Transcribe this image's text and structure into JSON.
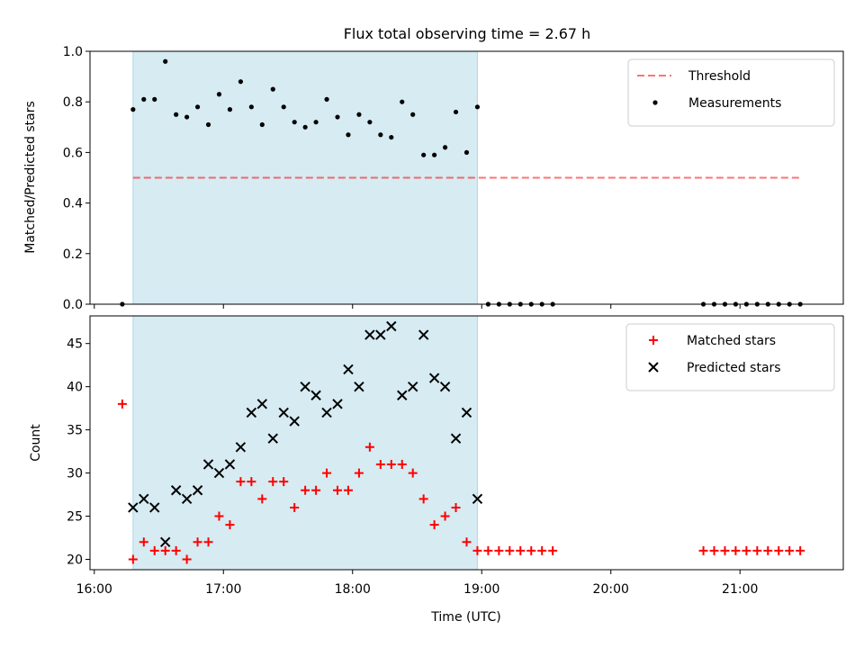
{
  "figure_title": "Flux total observing time = 2.67 h",
  "colors": {
    "shade": "#add8e6",
    "threshold": "#ff0000",
    "measurement": "#000000",
    "matched": "#ff0000",
    "predicted": "#000000"
  },
  "chart_data": [
    {
      "type": "scatter",
      "panel": "top",
      "title": "Flux total observing time = 2.67 h",
      "xlabel": "",
      "ylabel": "Matched/Predicted stars",
      "xlim": [
        "15:58",
        "21:48"
      ],
      "ylim": [
        0,
        1.0
      ],
      "xticks": [
        "16:00",
        "17:00",
        "18:00",
        "19:00",
        "20:00",
        "21:00"
      ],
      "yticks": [
        "0.0",
        "0.2",
        "0.4",
        "0.6",
        "0.8",
        "1.0"
      ],
      "shaded_interval": [
        "16:18",
        "18:58"
      ],
      "legend_position": "top-right",
      "threshold": {
        "name": "Threshold",
        "x": [
          "16:18",
          "21:28"
        ],
        "y": 0.5,
        "style": "dashed"
      },
      "series": [
        {
          "name": "Measurements",
          "marker": "dot",
          "points": [
            [
              "16:13",
              0.0
            ],
            [
              "16:18",
              0.77
            ],
            [
              "16:23",
              0.81
            ],
            [
              "16:28",
              0.81
            ],
            [
              "16:33",
              0.96
            ],
            [
              "16:38",
              0.75
            ],
            [
              "16:43",
              0.74
            ],
            [
              "16:48",
              0.78
            ],
            [
              "16:53",
              0.71
            ],
            [
              "16:58",
              0.83
            ],
            [
              "17:03",
              0.77
            ],
            [
              "17:08",
              0.88
            ],
            [
              "17:13",
              0.78
            ],
            [
              "17:18",
              0.71
            ],
            [
              "17:23",
              0.85
            ],
            [
              "17:28",
              0.78
            ],
            [
              "17:33",
              0.72
            ],
            [
              "17:38",
              0.7
            ],
            [
              "17:43",
              0.72
            ],
            [
              "17:48",
              0.81
            ],
            [
              "17:53",
              0.74
            ],
            [
              "17:58",
              0.67
            ],
            [
              "18:03",
              0.75
            ],
            [
              "18:08",
              0.72
            ],
            [
              "18:13",
              0.67
            ],
            [
              "18:18",
              0.66
            ],
            [
              "18:23",
              0.8
            ],
            [
              "18:28",
              0.75
            ],
            [
              "18:33",
              0.59
            ],
            [
              "18:38",
              0.59
            ],
            [
              "18:43",
              0.62
            ],
            [
              "18:48",
              0.76
            ],
            [
              "18:53",
              0.6
            ],
            [
              "18:58",
              0.78
            ],
            [
              "19:03",
              0.0
            ],
            [
              "19:08",
              0.0
            ],
            [
              "19:13",
              0.0
            ],
            [
              "19:18",
              0.0
            ],
            [
              "19:23",
              0.0
            ],
            [
              "19:28",
              0.0
            ],
            [
              "19:33",
              0.0
            ],
            [
              "20:43",
              0.0
            ],
            [
              "20:48",
              0.0
            ],
            [
              "20:53",
              0.0
            ],
            [
              "20:58",
              0.0
            ],
            [
              "21:03",
              0.0
            ],
            [
              "21:08",
              0.0
            ],
            [
              "21:13",
              0.0
            ],
            [
              "21:18",
              0.0
            ],
            [
              "21:23",
              0.0
            ],
            [
              "21:28",
              0.0
            ]
          ]
        }
      ]
    },
    {
      "type": "scatter",
      "panel": "bottom",
      "title": "",
      "xlabel": "Time (UTC)",
      "ylabel": "Count",
      "xlim": [
        "15:58",
        "21:48"
      ],
      "ylim": [
        18.8,
        48.2
      ],
      "xticks": [
        "16:00",
        "17:00",
        "18:00",
        "19:00",
        "20:00",
        "21:00"
      ],
      "yticks": [
        "20",
        "25",
        "30",
        "35",
        "40",
        "45"
      ],
      "shaded_interval": [
        "16:18",
        "18:58"
      ],
      "legend_position": "top-right",
      "series": [
        {
          "name": "Matched stars",
          "marker": "plus",
          "points": [
            [
              "16:13",
              38
            ],
            [
              "16:18",
              20
            ],
            [
              "16:23",
              22
            ],
            [
              "16:28",
              21
            ],
            [
              "16:33",
              21
            ],
            [
              "16:38",
              21
            ],
            [
              "16:43",
              20
            ],
            [
              "16:48",
              22
            ],
            [
              "16:53",
              22
            ],
            [
              "16:58",
              25
            ],
            [
              "17:03",
              24
            ],
            [
              "17:08",
              29
            ],
            [
              "17:13",
              29
            ],
            [
              "17:18",
              27
            ],
            [
              "17:23",
              29
            ],
            [
              "17:28",
              29
            ],
            [
              "17:33",
              26
            ],
            [
              "17:38",
              28
            ],
            [
              "17:43",
              28
            ],
            [
              "17:48",
              30
            ],
            [
              "17:53",
              28
            ],
            [
              "17:58",
              28
            ],
            [
              "18:03",
              30
            ],
            [
              "18:08",
              33
            ],
            [
              "18:13",
              31
            ],
            [
              "18:18",
              31
            ],
            [
              "18:23",
              31
            ],
            [
              "18:28",
              30
            ],
            [
              "18:33",
              27
            ],
            [
              "18:38",
              24
            ],
            [
              "18:43",
              25
            ],
            [
              "18:48",
              26
            ],
            [
              "18:53",
              22
            ],
            [
              "18:58",
              21
            ],
            [
              "19:03",
              21
            ],
            [
              "19:08",
              21
            ],
            [
              "19:13",
              21
            ],
            [
              "19:18",
              21
            ],
            [
              "19:23",
              21
            ],
            [
              "19:28",
              21
            ],
            [
              "19:33",
              21
            ],
            [
              "20:43",
              21
            ],
            [
              "20:48",
              21
            ],
            [
              "20:53",
              21
            ],
            [
              "20:58",
              21
            ],
            [
              "21:03",
              21
            ],
            [
              "21:08",
              21
            ],
            [
              "21:13",
              21
            ],
            [
              "21:18",
              21
            ],
            [
              "21:23",
              21
            ],
            [
              "21:28",
              21
            ]
          ]
        },
        {
          "name": "Predicted stars",
          "marker": "x",
          "points": [
            [
              "16:18",
              26
            ],
            [
              "16:23",
              27
            ],
            [
              "16:28",
              26
            ],
            [
              "16:33",
              22
            ],
            [
              "16:38",
              28
            ],
            [
              "16:43",
              27
            ],
            [
              "16:48",
              28
            ],
            [
              "16:53",
              31
            ],
            [
              "16:58",
              30
            ],
            [
              "17:03",
              31
            ],
            [
              "17:08",
              33
            ],
            [
              "17:13",
              37
            ],
            [
              "17:18",
              38
            ],
            [
              "17:23",
              34
            ],
            [
              "17:28",
              37
            ],
            [
              "17:33",
              36
            ],
            [
              "17:38",
              40
            ],
            [
              "17:43",
              39
            ],
            [
              "17:48",
              37
            ],
            [
              "17:53",
              38
            ],
            [
              "17:58",
              42
            ],
            [
              "18:03",
              40
            ],
            [
              "18:08",
              46
            ],
            [
              "18:13",
              46
            ],
            [
              "18:18",
              47
            ],
            [
              "18:23",
              39
            ],
            [
              "18:28",
              40
            ],
            [
              "18:33",
              46
            ],
            [
              "18:38",
              41
            ],
            [
              "18:43",
              40
            ],
            [
              "18:48",
              34
            ],
            [
              "18:53",
              37
            ],
            [
              "18:58",
              27
            ]
          ]
        }
      ]
    }
  ]
}
